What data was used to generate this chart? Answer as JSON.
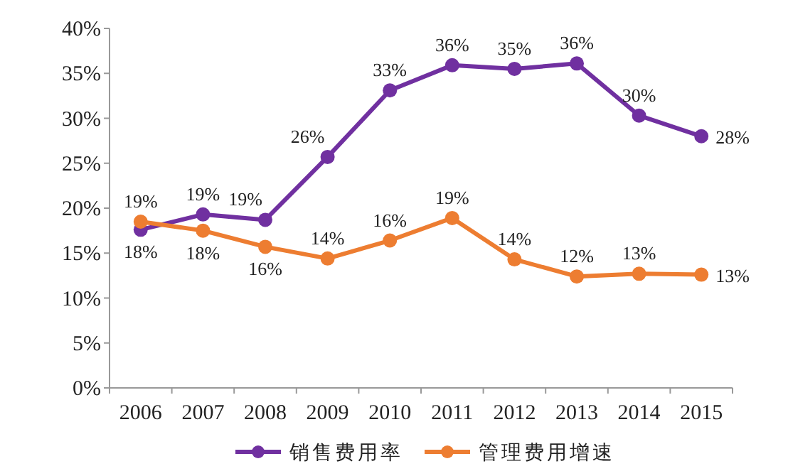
{
  "chart_data": {
    "type": "line",
    "categories": [
      "2006",
      "2007",
      "2008",
      "2009",
      "2010",
      "2011",
      "2012",
      "2013",
      "2014",
      "2015"
    ],
    "series": [
      {
        "name": "销售费用率",
        "color": "#7030a0",
        "values": [
          17.6,
          19.3,
          18.7,
          25.7,
          33.1,
          35.9,
          35.5,
          36.1,
          30.3,
          28.0
        ],
        "value_labels": [
          "18%",
          "19%",
          "19%",
          "26%",
          "33%",
          "36%",
          "35%",
          "36%",
          "30%",
          "28%"
        ]
      },
      {
        "name": "管理费用增速",
        "color": "#ed7d31",
        "values": [
          18.5,
          17.5,
          15.7,
          14.4,
          16.4,
          18.9,
          14.3,
          12.4,
          12.7,
          12.6
        ],
        "value_labels": [
          "19%",
          "18%",
          "16%",
          "14%",
          "16%",
          "19%",
          "14%",
          "12%",
          "13%",
          "13%"
        ]
      }
    ],
    "ylim": [
      0,
      40
    ],
    "yticks": [
      {
        "value": 0,
        "label": "0%"
      },
      {
        "value": 5,
        "label": "5%"
      },
      {
        "value": 10,
        "label": "10%"
      },
      {
        "value": 15,
        "label": "15%"
      },
      {
        "value": 20,
        "label": "20%"
      },
      {
        "value": 25,
        "label": "25%"
      },
      {
        "value": 30,
        "label": "30%"
      },
      {
        "value": 35,
        "label": "35%"
      },
      {
        "value": 40,
        "label": "40%"
      }
    ],
    "grid": false,
    "legend": "bottom",
    "marker": "circle",
    "line_style": "solid"
  }
}
